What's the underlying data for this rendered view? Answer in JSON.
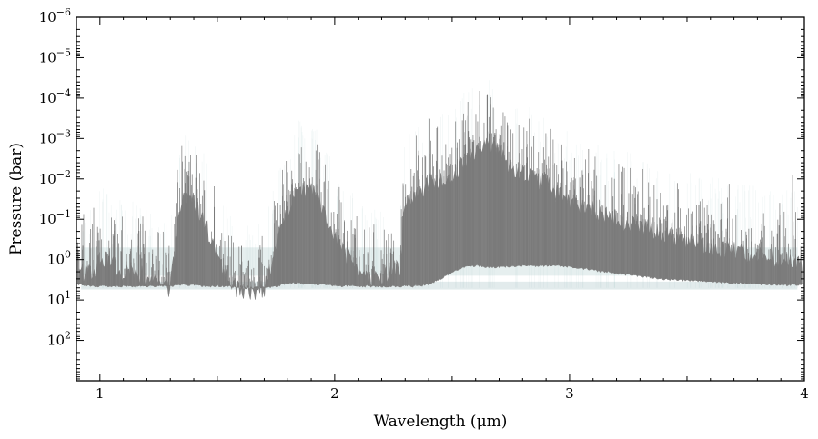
{
  "chart_data": {
    "type": "area",
    "title": "",
    "xlabel": "Wavelength (μm)",
    "ylabel": "Pressure (bar)",
    "xlim": [
      0.9,
      4.0
    ],
    "ylim": [
      1000,
      1e-06
    ],
    "yscale": "log",
    "y_inverted": true,
    "grid": false,
    "legend": "none",
    "x_ticks": [
      {
        "value": 1,
        "label": "1"
      },
      {
        "value": 2,
        "label": "2"
      },
      {
        "value": 3,
        "label": "3"
      },
      {
        "value": 4,
        "label": "4"
      }
    ],
    "y_ticks": [
      {
        "value": 1e-06,
        "base": "10",
        "exp": "−6"
      },
      {
        "value": 1e-05,
        "base": "10",
        "exp": "−5"
      },
      {
        "value": 0.0001,
        "base": "10",
        "exp": "−4"
      },
      {
        "value": 0.001,
        "base": "10",
        "exp": "−3"
      },
      {
        "value": 0.01,
        "base": "10",
        "exp": "−2"
      },
      {
        "value": 0.1,
        "base": "10",
        "exp": "−1"
      },
      {
        "value": 1,
        "base": "10",
        "exp": "0"
      },
      {
        "value": 10,
        "base": "10",
        "exp": "1"
      },
      {
        "value": 100,
        "base": "10",
        "exp": "2"
      }
    ],
    "series": [
      {
        "role": "contribution-envelope",
        "color": "#808080",
        "x": [
          0.9,
          0.98,
          1.0,
          1.05,
          1.1,
          1.15,
          1.2,
          1.25,
          1.3,
          1.33,
          1.35,
          1.4,
          1.45,
          1.5,
          1.55,
          1.6,
          1.65,
          1.7,
          1.75,
          1.8,
          1.85,
          1.9,
          1.95,
          2.0,
          2.05,
          2.1,
          2.15,
          2.2,
          2.25,
          2.28,
          2.3,
          2.35,
          2.4,
          2.45,
          2.5,
          2.55,
          2.6,
          2.65,
          2.7,
          2.75,
          2.8,
          2.85,
          2.9,
          2.95,
          3.0,
          3.1,
          3.2,
          3.3,
          3.4,
          3.5,
          3.6,
          3.7,
          3.8,
          3.9,
          4.0
        ],
        "p_top": [
          2.0,
          1.5,
          0.7,
          0.9,
          1.8,
          1.5,
          2.5,
          3.5,
          4.0,
          0.15,
          0.02,
          0.03,
          0.12,
          0.6,
          3.0,
          4.5,
          5.0,
          4.5,
          0.4,
          0.05,
          0.015,
          0.015,
          0.05,
          0.2,
          0.6,
          1.2,
          2.0,
          2.5,
          1.5,
          1.2,
          0.03,
          0.02,
          0.01,
          0.01,
          0.008,
          0.003,
          0.0015,
          0.001,
          0.002,
          0.004,
          0.006,
          0.008,
          0.01,
          0.02,
          0.03,
          0.05,
          0.08,
          0.12,
          0.2,
          0.3,
          0.4,
          0.5,
          0.7,
          0.8,
          0.9
        ],
        "p_bottom": [
          4.0,
          4.5,
          4.5,
          4.5,
          4.5,
          4.5,
          4.5,
          4.5,
          4.5,
          4.2,
          4.2,
          4.2,
          4.5,
          4.5,
          4.5,
          5.0,
          5.0,
          5.0,
          4.5,
          3.8,
          3.8,
          4.0,
          4.0,
          4.5,
          4.5,
          4.5,
          4.5,
          4.5,
          4.5,
          4.5,
          4.5,
          4.5,
          4.0,
          3.0,
          2.0,
          1.5,
          1.4,
          1.5,
          1.5,
          1.5,
          1.4,
          1.4,
          1.4,
          1.4,
          1.5,
          1.8,
          2.2,
          2.5,
          3.0,
          3.2,
          3.5,
          3.8,
          4.0,
          4.2,
          4.2
        ]
      }
    ],
    "features": [
      {
        "label": "spike",
        "x": 1.33,
        "p": 0.006
      },
      {
        "label": "spike",
        "x": 1.92,
        "p": 0.006
      },
      {
        "label": "spike",
        "x": 2.65,
        "p": 8e-05
      },
      {
        "label": "spike",
        "x": 3.95,
        "p": 0.008
      }
    ],
    "band": {
      "color": "#b8d0d0",
      "p_range": [
        0.5,
        2.5
      ]
    }
  }
}
